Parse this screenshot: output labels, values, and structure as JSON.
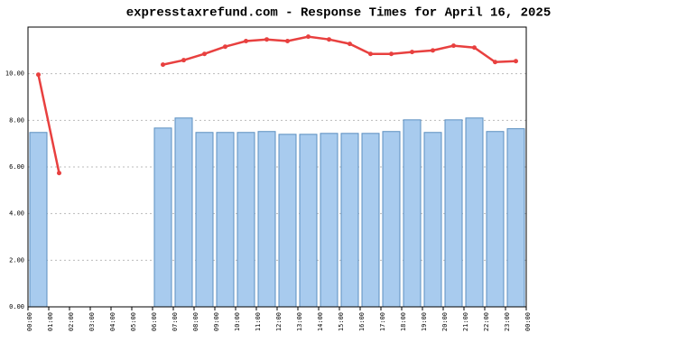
{
  "chart_data": {
    "type": "bar_line",
    "title": "expresstaxrefund.com - Response Times for April 16, 2025",
    "xticks": [
      "00:00",
      "01:00",
      "02:00",
      "03:00",
      "04:00",
      "05:00",
      "06:00",
      "07:00",
      "08:00",
      "09:00",
      "10:00",
      "11:00",
      "12:00",
      "13:00",
      "14:00",
      "15:00",
      "16:00",
      "17:00",
      "18:00",
      "19:00",
      "20:00",
      "21:00",
      "22:00",
      "23:00",
      "00:00"
    ],
    "series": [
      {
        "type": "bar",
        "color": "#a8cbee",
        "values": [
          7.48,
          null,
          null,
          null,
          null,
          null,
          7.67,
          8.1,
          7.48,
          7.48,
          7.48,
          7.52,
          7.4,
          7.4,
          7.44,
          7.44,
          7.44,
          7.52,
          8.02,
          7.48,
          8.02,
          8.1,
          7.52,
          7.64
        ]
      },
      {
        "type": "line",
        "color": "#e8403f",
        "values": [
          9.96,
          5.74,
          null,
          null,
          null,
          null,
          10.39,
          10.58,
          10.85,
          11.16,
          11.4,
          11.47,
          11.4,
          11.59,
          11.47,
          11.28,
          10.85,
          10.85,
          10.93,
          11.0,
          11.2,
          11.12,
          10.5,
          10.54
        ]
      }
    ],
    "ylim": [
      0,
      12
    ],
    "yticks": [
      {
        "value": 0,
        "label": "0.00"
      },
      {
        "value": 2,
        "label": "2.00"
      },
      {
        "value": 4,
        "label": "4.00"
      },
      {
        "value": 6,
        "label": "6.00"
      },
      {
        "value": 8,
        "label": "8.00"
      },
      {
        "value": 10,
        "label": "10.00"
      }
    ],
    "grid": true
  }
}
